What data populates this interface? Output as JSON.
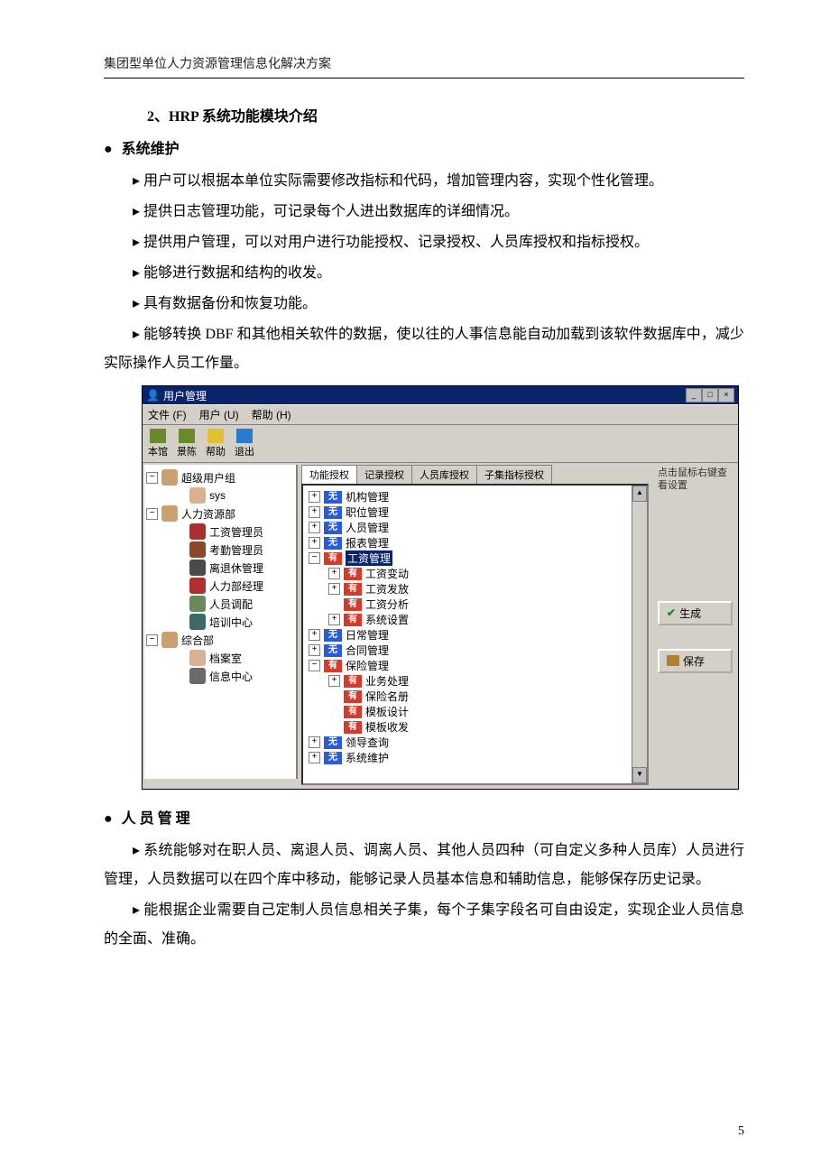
{
  "header": "集团型单位人力资源管理信息化解决方案",
  "section_title": "2、HRP 系统功能模块介绍",
  "h1": "系统维护",
  "paras1": [
    "用户可以根据本单位实际需要修改指标和代码，增加管理内容，实现个性化管理。",
    "提供日志管理功能，可记录每个人进出数据库的详细情况。",
    "提供用户管理，可以对用户进行功能授权、记录授权、人员库授权和指标授权。",
    "能够进行数据和结构的收发。",
    "具有数据备份和恢复功能。",
    "能够转换 DBF 和其他相关软件的数据，使以往的人事信息能自动加载到该软件数据库中，减少实际操作人员工作量。"
  ],
  "h2": "人 员 管 理",
  "paras2": [
    "系统能够对在职人员、离退人员、调离人员、其他人员四种（可自定义多种人员库）人员进行管理，人员数据可以在四个库中移动，能够记录人员基本信息和辅助信息，能够保存历史记录。",
    "能根据企业需要自己定制人员信息相关子集，每个子集字段名可自由设定，实现企业人员信息的全面、准确。"
  ],
  "page_number": "5",
  "window": {
    "title": "用户管理",
    "menu": [
      "文件 (F)",
      "用户 (U)",
      "帮助 (H)"
    ],
    "toolbar": [
      {
        "label": "本馆",
        "color": "#6a8a2a"
      },
      {
        "label": "景陈",
        "color": "#6a8a2a"
      },
      {
        "label": "帮助",
        "color": "#e0c030"
      },
      {
        "label": "退出",
        "color": "#2a7ad0"
      }
    ],
    "left_tree": [
      {
        "lvl": 0,
        "pm": "−",
        "icon": "#c9a070",
        "label": "超级用户组"
      },
      {
        "lvl": 2,
        "pm": "",
        "icon": "#d9b090",
        "label": "sys"
      },
      {
        "lvl": 0,
        "pm": "−",
        "icon": "#c9a070",
        "label": "人力资源部"
      },
      {
        "lvl": 2,
        "pm": "",
        "icon": "#a93030",
        "label": "工资管理员"
      },
      {
        "lvl": 2,
        "pm": "",
        "icon": "#8a4a2a",
        "label": "考勤管理员"
      },
      {
        "lvl": 2,
        "pm": "",
        "icon": "#4a4a4a",
        "label": "离退休管理"
      },
      {
        "lvl": 2,
        "pm": "",
        "icon": "#b03030",
        "label": "人力部经理"
      },
      {
        "lvl": 2,
        "pm": "",
        "icon": "#6a8a5a",
        "label": "人员调配"
      },
      {
        "lvl": 2,
        "pm": "",
        "icon": "#3a6a6a",
        "label": "培训中心"
      },
      {
        "lvl": 0,
        "pm": "−",
        "icon": "#c9a070",
        "label": "综合部"
      },
      {
        "lvl": 2,
        "pm": "",
        "icon": "#d9b090",
        "label": "档案室"
      },
      {
        "lvl": 2,
        "pm": "",
        "icon": "#6a6a6a",
        "label": "信息中心"
      }
    ],
    "tabs": [
      "功能授权",
      "记录授权",
      "人员库授权",
      "子集指标授权"
    ],
    "mid_tree": [
      {
        "lvl": 1,
        "pm": "+",
        "tag": "wu",
        "label": "机构管理"
      },
      {
        "lvl": 1,
        "pm": "+",
        "tag": "wu",
        "label": "职位管理"
      },
      {
        "lvl": 1,
        "pm": "+",
        "tag": "wu",
        "label": "人员管理"
      },
      {
        "lvl": 1,
        "pm": "+",
        "tag": "wu",
        "label": "报表管理"
      },
      {
        "lvl": 1,
        "pm": "−",
        "tag": "you",
        "label": "工资管理",
        "sel": true
      },
      {
        "lvl": 2,
        "pm": "+",
        "tag": "you",
        "label": "工资变动"
      },
      {
        "lvl": 2,
        "pm": "+",
        "tag": "you",
        "label": "工资发放"
      },
      {
        "lvl": 2,
        "pm": "",
        "tag": "you",
        "label": "工资分析"
      },
      {
        "lvl": 2,
        "pm": "+",
        "tag": "you",
        "label": "系统设置"
      },
      {
        "lvl": 1,
        "pm": "+",
        "tag": "wu",
        "label": "日常管理"
      },
      {
        "lvl": 1,
        "pm": "+",
        "tag": "wu",
        "label": "合同管理"
      },
      {
        "lvl": 1,
        "pm": "−",
        "tag": "you",
        "label": "保险管理"
      },
      {
        "lvl": 2,
        "pm": "+",
        "tag": "you",
        "label": "业务处理"
      },
      {
        "lvl": 2,
        "pm": "",
        "tag": "you",
        "label": "保险名册"
      },
      {
        "lvl": 2,
        "pm": "",
        "tag": "you",
        "label": "模板设计"
      },
      {
        "lvl": 2,
        "pm": "",
        "tag": "you",
        "label": "模板收发"
      },
      {
        "lvl": 1,
        "pm": "+",
        "tag": "wu",
        "label": "领导查询"
      },
      {
        "lvl": 1,
        "pm": "+",
        "tag": "wu",
        "label": "系统维护"
      }
    ],
    "right": {
      "hint": "点击鼠标右键查看设置",
      "btn1": "生成",
      "btn2": "保存"
    },
    "tag_text": {
      "wu": "无",
      "you": "有"
    }
  }
}
